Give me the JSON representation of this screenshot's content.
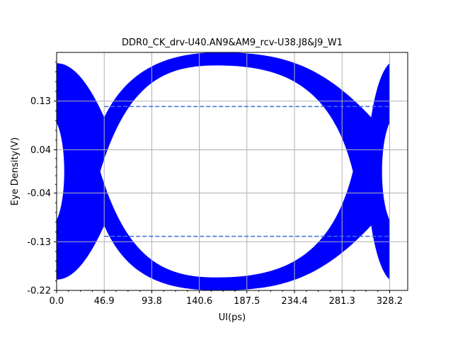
{
  "chart_data": {
    "type": "area",
    "title": "DDR0_CK_drv-U40.AN9&AM9_rcv-U38.J8&J9_W1",
    "xlabel": "UI(ps)",
    "ylabel": "Eye Density(V)",
    "xlim": [
      0,
      346
    ],
    "ylim": [
      -0.22,
      0.22
    ],
    "x_ticks": [
      0.0,
      46.9,
      93.8,
      140.6,
      187.5,
      234.4,
      281.3,
      328.2
    ],
    "x_tick_labels": [
      "0.0",
      "46.9",
      "93.8",
      "140.6",
      "187.5",
      "234.4",
      "281.3",
      "328.2"
    ],
    "y_ticks": [
      0.13,
      0.04,
      -0.04,
      -0.13,
      -0.22
    ],
    "y_tick_labels": [
      "0.13",
      "0.04",
      "-0.04",
      "-0.13",
      "-0.22"
    ],
    "grid": true,
    "eye_color": "#0000ff",
    "threshold_color": "#3d6fd9",
    "thresholds": [
      0.12,
      -0.12
    ],
    "x_start": 0,
    "x_end": 328.2,
    "crossings": [
      46.9,
      310
    ],
    "crossing_half_width": 18,
    "level_max": 0.207,
    "level_min": -0.22,
    "eye_inner_amplitude": 0.196,
    "eye_inner_span": [
      55,
      300
    ]
  }
}
